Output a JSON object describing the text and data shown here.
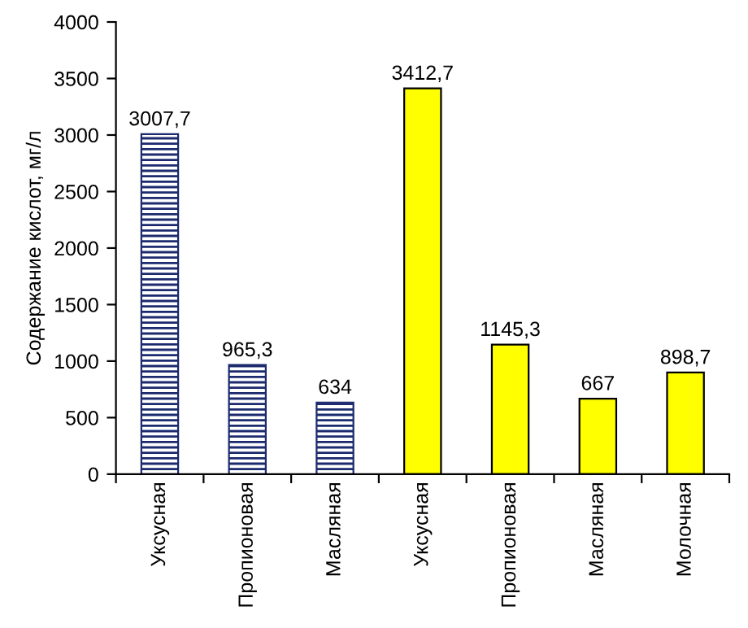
{
  "chart_data": {
    "type": "bar",
    "ylabel": "Содержание кислот, мг/л",
    "categories": [
      "Уксусная",
      "Пропионовая",
      "Масляная",
      "Уксусная",
      "Пропионовая",
      "Масляная",
      "Молочная"
    ],
    "values": [
      3007.7,
      965.3,
      634,
      3412.7,
      1145.3,
      667,
      898.7
    ],
    "value_labels": [
      "3007,7",
      "965,3",
      "634",
      "3412,7",
      "1145,3",
      "667",
      "898,7"
    ],
    "colors": [
      "#1c2a6e",
      "#1c2a6e",
      "#1c2a6e",
      "#ffff00",
      "#ffff00",
      "#ffff00",
      "#ffff00"
    ],
    "ylim": [
      0,
      4000
    ],
    "yticks": [
      0,
      500,
      1000,
      1500,
      2000,
      2500,
      3000,
      3500,
      4000
    ],
    "grid": false
  }
}
